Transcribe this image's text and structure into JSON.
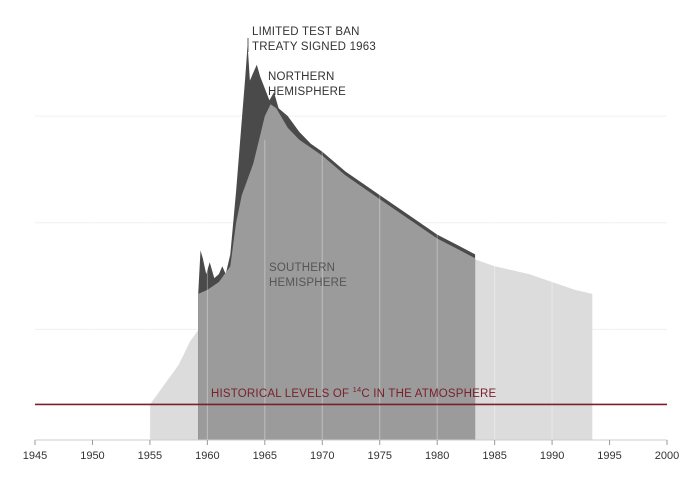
{
  "chart_data": {
    "type": "area",
    "title": "",
    "xlabel": "",
    "ylabel": "",
    "xlim": [
      1945,
      2000
    ],
    "x_ticks": [
      1945,
      1950,
      1955,
      1960,
      1965,
      1970,
      1975,
      1980,
      1985,
      1990,
      1995,
      2000
    ],
    "y_axis_labeled": false,
    "grid": "vertical",
    "annotations": {
      "treaty_line1": "LIMITED TEST BAN",
      "treaty_line2": "TREATY SIGNED 1963",
      "northern_line1": "NORTHERN",
      "northern_line2": "HEMISPHERE",
      "southern_line1": "SOUTHERN",
      "southern_line2": "HEMISPHERE",
      "historical_prefix": "HISTORICAL LEVELS OF ",
      "historical_sup": "14",
      "historical_suffix": "C IN THE ATMOSPHERE"
    },
    "baseline_level": 0.09,
    "series": [
      {
        "key": "background",
        "x": [
          1955.0,
          1955.5,
          1956.0,
          1956.5,
          1957.0,
          1957.5,
          1958.0,
          1958.5,
          1959.0,
          1960.0,
          1961.0,
          1962.0,
          1962.5,
          1963.0,
          1963.3,
          1963.6,
          1964.0,
          1964.5,
          1965.0,
          1966.0,
          1967.0,
          1968.0,
          1970.0,
          1972.0,
          1975.0,
          1978.0,
          1980.0,
          1983.0,
          1985.0,
          1988.0,
          1990.0,
          1992.0,
          1993.5
        ],
        "y": [
          0.09,
          0.11,
          0.13,
          0.15,
          0.17,
          0.19,
          0.22,
          0.25,
          0.27,
          0.31,
          0.33,
          0.4,
          0.55,
          0.64,
          0.69,
          0.74,
          0.75,
          0.83,
          0.8,
          0.77,
          0.76,
          0.74,
          0.7,
          0.66,
          0.6,
          0.54,
          0.5,
          0.46,
          0.44,
          0.42,
          0.4,
          0.38,
          0.37
        ]
      },
      {
        "key": "southern",
        "x": [
          1959.2,
          1960.0,
          1961.0,
          1962.0,
          1962.5,
          1963.0,
          1963.5,
          1964.0,
          1964.5,
          1965.0,
          1965.5,
          1966.0,
          1967.0,
          1968.0,
          1970.0,
          1972.0,
          1975.0,
          1978.0,
          1980.0,
          1982.0,
          1983.3
        ],
        "y": [
          0.37,
          0.38,
          0.4,
          0.44,
          0.55,
          0.62,
          0.66,
          0.7,
          0.76,
          0.82,
          0.85,
          0.84,
          0.79,
          0.76,
          0.72,
          0.67,
          0.61,
          0.55,
          0.51,
          0.48,
          0.46
        ]
      },
      {
        "key": "northern",
        "x": [
          1959.2,
          1959.4,
          1959.6,
          1959.9,
          1960.2,
          1960.6,
          1961.0,
          1961.3,
          1961.6,
          1962.0,
          1962.5,
          1963.0,
          1963.3,
          1963.5,
          1963.7,
          1964.0,
          1964.3,
          1964.6,
          1965.0,
          1965.4,
          1965.8,
          1966.2,
          1967.0,
          1968.0,
          1969.0,
          1970.0,
          1972.0,
          1975.0,
          1978.0,
          1980.0,
          1982.0,
          1983.3
        ],
        "y": [
          0.37,
          0.48,
          0.46,
          0.42,
          0.45,
          0.41,
          0.42,
          0.44,
          0.42,
          0.47,
          0.63,
          0.81,
          0.92,
          1.0,
          0.91,
          0.93,
          0.95,
          0.92,
          0.89,
          0.86,
          0.88,
          0.84,
          0.82,
          0.78,
          0.75,
          0.73,
          0.68,
          0.62,
          0.56,
          0.52,
          0.49,
          0.47
        ]
      }
    ],
    "colors": {
      "background": "#dcdcdc",
      "southern": "#9b9b9b",
      "northern": "#4a4a4a",
      "historical_line": "#7a1f2b",
      "grid": "#ffffff"
    }
  }
}
